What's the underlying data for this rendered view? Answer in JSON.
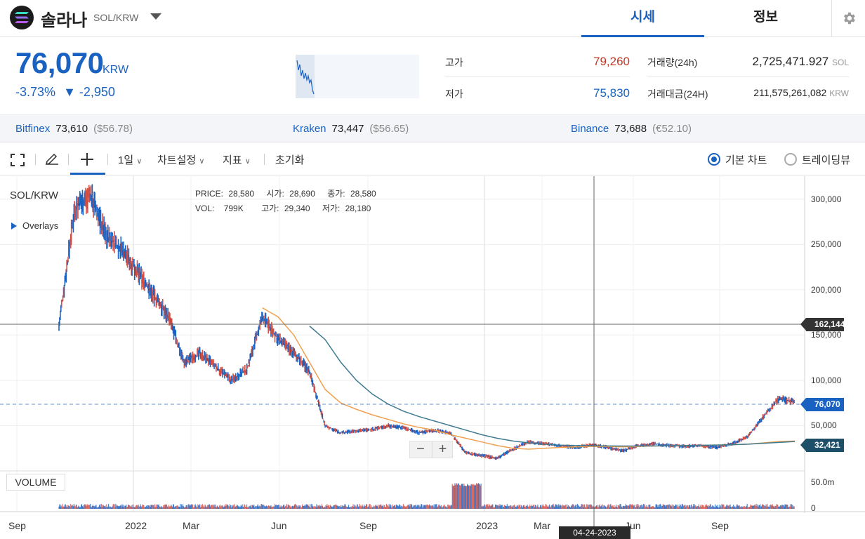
{
  "header": {
    "coin_name": "솔라나",
    "pair": "SOL/KRW",
    "tabs": [
      {
        "label": "시세"
      },
      {
        "label": "정보"
      }
    ]
  },
  "price": {
    "current": "76,070",
    "unit": "KRW",
    "change_pct": "-3.73%",
    "change_abs": "▼ -2,950"
  },
  "stats": {
    "high_label": "고가",
    "high_value": "79,260",
    "low_label": "저가",
    "low_value": "75,830",
    "volume_label": "거래량(24h)",
    "volume_value": "2,725,471.927",
    "volume_unit": "SOL",
    "amount_label": "거래대금(24H)",
    "amount_value": "211,575,261,082",
    "amount_unit": "KRW"
  },
  "exchanges": [
    {
      "name": "Bitfinex",
      "price": "73,610",
      "sub": "($56.78)"
    },
    {
      "name": "Kraken",
      "price": "73,447",
      "sub": "($56.65)"
    },
    {
      "name": "Binance",
      "price": "73,688",
      "sub": "(€52.10)"
    }
  ],
  "toolbar": {
    "interval": "1일",
    "chart_settings": "차트설정",
    "indicators": "지표",
    "reset": "초기화",
    "view_basic": "기본 차트",
    "view_tradingview": "트레이딩뷰"
  },
  "chart": {
    "symbol": "SOL/KRW",
    "overlays": "Overlays",
    "volume_label": "VOLUME",
    "ohlc": {
      "price_k": "PRICE:",
      "price_v": "28,580",
      "open_k": "시가:",
      "open_v": "28,690",
      "close_k": "종가:",
      "close_v": "28,580",
      "vol_k": "VOL:",
      "vol_v": "799K",
      "high_k": "고가:",
      "high_v": "29,340",
      "low_k": "저가:",
      "low_v": "28,180"
    },
    "crosshair_price": "162,144",
    "current_price_tag": "76,070",
    "ma_tag": "32,421",
    "crosshair_date": "04-24-2023",
    "volume_axis_top": "50.0m",
    "volume_axis_zero": "0",
    "zoom_minus": "−",
    "zoom_plus": "+",
    "colors": {
      "up": "#d24f45",
      "down": "#1a62c2",
      "ma_fast": "#f0a050",
      "ma_slow": "#3f7a90",
      "accent": "#1a62c2"
    }
  },
  "chart_data": {
    "type": "line",
    "title": "",
    "yticks": [
      "300,000",
      "250,000",
      "200,000",
      "150,000",
      "100,000",
      "50,000"
    ],
    "ytick_values": [
      300000,
      250000,
      200000,
      150000,
      100000,
      50000
    ],
    "xticks": [
      "Sep",
      "2022",
      "Mar",
      "Jun",
      "Sep",
      "2023",
      "Mar",
      "Jun",
      "Sep"
    ],
    "ylim": [
      0,
      320000
    ],
    "series": [
      {
        "values": [
          160000,
          290000,
          305000,
          260000,
          245000,
          220000,
          195000,
          170000,
          120000,
          130000,
          115000,
          100000,
          112000,
          170000,
          145000,
          130000,
          110000,
          50000,
          42000,
          44000,
          46000,
          50000,
          48000,
          42000,
          45000,
          42000,
          20000,
          17000,
          14000,
          24000,
          32000,
          30000,
          28000,
          26000,
          29000,
          26000,
          22000,
          28000,
          30000,
          28000,
          27000,
          28000,
          26000,
          30000,
          38000,
          60000,
          80000,
          76070
        ]
      },
      {
        "values": [
          null,
          null,
          null,
          null,
          null,
          null,
          null,
          null,
          null,
          null,
          null,
          null,
          null,
          180000,
          170000,
          150000,
          120000,
          90000,
          75000,
          68000,
          62000,
          57000,
          52000,
          48000,
          45000,
          40000,
          36000,
          32000,
          28000,
          25000,
          24000,
          25000,
          26000,
          26500,
          27000,
          27000,
          26500,
          27000,
          27500,
          27800,
          28000,
          28200,
          28500,
          29000,
          29500,
          31000,
          32421,
          33000
        ]
      },
      {
        "values": [
          null,
          null,
          null,
          null,
          null,
          null,
          null,
          null,
          null,
          null,
          null,
          null,
          null,
          null,
          null,
          null,
          160000,
          145000,
          120000,
          100000,
          85000,
          74000,
          66000,
          60000,
          55000,
          50000,
          45000,
          40000,
          36000,
          33000,
          31000,
          29500,
          28500,
          28000,
          27800,
          27600,
          27500,
          27500,
          27600,
          27800,
          28000,
          28300,
          28600,
          29000,
          29500,
          30500,
          31500,
          32421
        ]
      }
    ]
  }
}
